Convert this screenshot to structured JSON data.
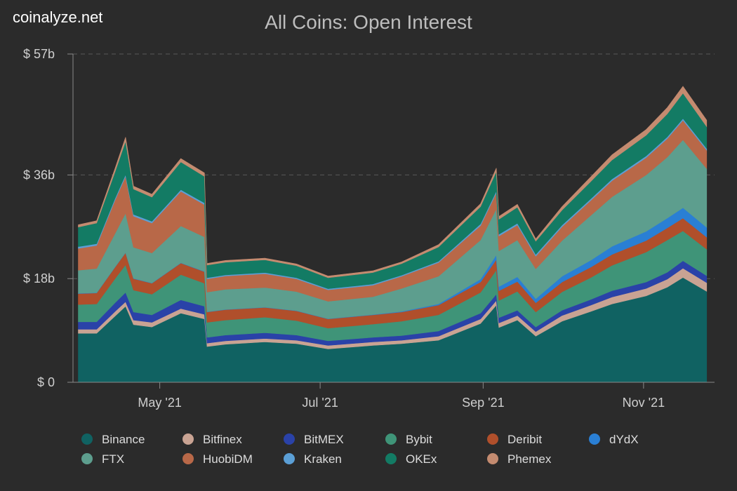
{
  "brand": "coinalyze.net",
  "chart_data": {
    "type": "area",
    "stacked": true,
    "title": "All Coins: Open Interest",
    "y_unit_prefix": "$ ",
    "y_unit_suffix": "b",
    "ylim": [
      0,
      57
    ],
    "yticks": [
      {
        "value": 0,
        "label": "$ 0"
      },
      {
        "value": 18,
        "label": "$ 18b"
      },
      {
        "value": 36,
        "label": "$ 36b"
      },
      {
        "value": 57,
        "label": "$ 57b"
      }
    ],
    "xlim": [
      "2021-03-29",
      "2021-11-28"
    ],
    "xticks": [
      {
        "date": "2021-05-01",
        "label": "May '21"
      },
      {
        "date": "2021-07-01",
        "label": "Jul '21"
      },
      {
        "date": "2021-09-01",
        "label": "Sep '21"
      },
      {
        "date": "2021-11-01",
        "label": "Nov '21"
      }
    ],
    "x": [
      "2021-03-31",
      "2021-04-07",
      "2021-04-14",
      "2021-04-18",
      "2021-04-21",
      "2021-04-28",
      "2021-05-09",
      "2021-05-18",
      "2021-05-19",
      "2021-05-26",
      "2021-06-10",
      "2021-06-22",
      "2021-07-04",
      "2021-07-21",
      "2021-08-01",
      "2021-08-15",
      "2021-08-31",
      "2021-09-06",
      "2021-09-07",
      "2021-09-14",
      "2021-09-21",
      "2021-10-01",
      "2021-10-12",
      "2021-10-20",
      "2021-11-02",
      "2021-11-10",
      "2021-11-16",
      "2021-11-25"
    ],
    "series": [
      {
        "name": "Binance",
        "color": "#106262",
        "values": [
          8.5,
          8.5,
          11.5,
          13.2,
          10.0,
          9.6,
          12.0,
          11.0,
          6.2,
          6.6,
          7.0,
          6.7,
          5.8,
          6.4,
          6.7,
          7.3,
          10.2,
          13.4,
          9.5,
          10.8,
          8.0,
          10.6,
          12.3,
          13.6,
          15.0,
          16.5,
          18.2,
          15.8
        ]
      },
      {
        "name": "Bitfinex",
        "color": "#c9a393",
        "values": [
          0.7,
          0.7,
          0.8,
          0.8,
          0.8,
          0.8,
          0.8,
          0.8,
          0.6,
          0.6,
          0.6,
          0.6,
          0.6,
          0.6,
          0.6,
          0.7,
          0.8,
          0.8,
          0.8,
          0.8,
          0.8,
          1.0,
          1.1,
          1.2,
          1.3,
          1.4,
          1.6,
          1.5
        ]
      },
      {
        "name": "BitMEX",
        "color": "#2a42a8",
        "values": [
          1.3,
          1.3,
          1.5,
          1.6,
          1.4,
          1.3,
          1.5,
          1.4,
          1.0,
          1.0,
          1.0,
          0.9,
          0.8,
          0.8,
          0.8,
          0.9,
          1.0,
          1.1,
          0.9,
          0.9,
          0.8,
          0.9,
          1.0,
          1.1,
          1.1,
          1.2,
          1.3,
          1.2
        ]
      },
      {
        "name": "Bybit",
        "color": "#3f9478",
        "values": [
          3.0,
          3.1,
          4.2,
          4.8,
          3.8,
          3.6,
          4.4,
          4.0,
          2.6,
          2.6,
          2.7,
          2.5,
          2.2,
          2.3,
          2.5,
          2.8,
          3.6,
          4.2,
          3.0,
          3.3,
          2.6,
          3.2,
          3.8,
          4.4,
          5.2,
          5.6,
          5.2,
          4.6
        ]
      },
      {
        "name": "Deribit",
        "color": "#b04f2b",
        "values": [
          1.9,
          1.9,
          2.0,
          2.1,
          2.0,
          1.9,
          2.0,
          2.0,
          1.8,
          1.8,
          1.7,
          1.7,
          1.6,
          1.6,
          1.6,
          1.7,
          1.8,
          1.8,
          1.7,
          1.7,
          1.6,
          1.7,
          1.8,
          1.9,
          2.0,
          2.1,
          2.2,
          2.1
        ]
      },
      {
        "name": "dYdX",
        "color": "#2a7fd4",
        "values": [
          0.05,
          0.05,
          0.05,
          0.05,
          0.05,
          0.05,
          0.05,
          0.05,
          0.05,
          0.05,
          0.05,
          0.05,
          0.05,
          0.05,
          0.1,
          0.2,
          0.5,
          0.8,
          0.7,
          0.8,
          0.7,
          1.0,
          1.2,
          1.4,
          1.6,
          1.7,
          1.8,
          1.7
        ]
      },
      {
        "name": "FTX",
        "color": "#5d9e8e",
        "values": [
          4.0,
          4.2,
          5.8,
          6.8,
          5.4,
          5.2,
          6.4,
          6.0,
          3.4,
          3.5,
          3.4,
          3.3,
          3.0,
          3.1,
          4.0,
          4.8,
          6.8,
          8.0,
          6.2,
          6.4,
          5.2,
          6.2,
          7.8,
          8.6,
          9.8,
          10.6,
          11.8,
          10.2
        ]
      },
      {
        "name": "HuobiDM",
        "color": "#b86848",
        "values": [
          3.8,
          4.0,
          5.8,
          6.4,
          5.4,
          5.2,
          6.0,
          5.6,
          2.3,
          2.3,
          2.4,
          2.2,
          2.0,
          2.0,
          2.1,
          2.4,
          2.5,
          2.8,
          2.6,
          2.6,
          2.2,
          2.4,
          2.6,
          2.8,
          3.0,
          3.2,
          3.4,
          3.2
        ]
      },
      {
        "name": "Kraken",
        "color": "#5b9fd6",
        "values": [
          0.3,
          0.3,
          0.3,
          0.3,
          0.3,
          0.3,
          0.3,
          0.3,
          0.2,
          0.2,
          0.2,
          0.2,
          0.2,
          0.2,
          0.2,
          0.2,
          0.3,
          0.3,
          0.3,
          0.3,
          0.3,
          0.3,
          0.3,
          0.3,
          0.3,
          0.3,
          0.3,
          0.3
        ]
      },
      {
        "name": "OKEx",
        "color": "#137b64",
        "values": [
          3.4,
          3.6,
          4.6,
          5.8,
          4.4,
          4.2,
          4.8,
          4.6,
          2.2,
          2.2,
          2.2,
          2.1,
          1.9,
          2.0,
          2.0,
          2.5,
          3.0,
          3.4,
          2.6,
          2.8,
          2.3,
          2.6,
          3.0,
          3.3,
          3.6,
          4.0,
          4.4,
          3.8
        ]
      },
      {
        "name": "Phemex",
        "color": "#c48b70",
        "values": [
          0.4,
          0.4,
          0.6,
          0.7,
          0.5,
          0.5,
          0.6,
          0.6,
          0.3,
          0.3,
          0.3,
          0.3,
          0.3,
          0.3,
          0.3,
          0.4,
          0.5,
          0.6,
          0.5,
          0.5,
          0.4,
          0.6,
          0.8,
          0.9,
          1.0,
          1.1,
          1.2,
          1.1
        ]
      }
    ],
    "legend_position": "bottom",
    "grid": "horizontal-dashed"
  }
}
